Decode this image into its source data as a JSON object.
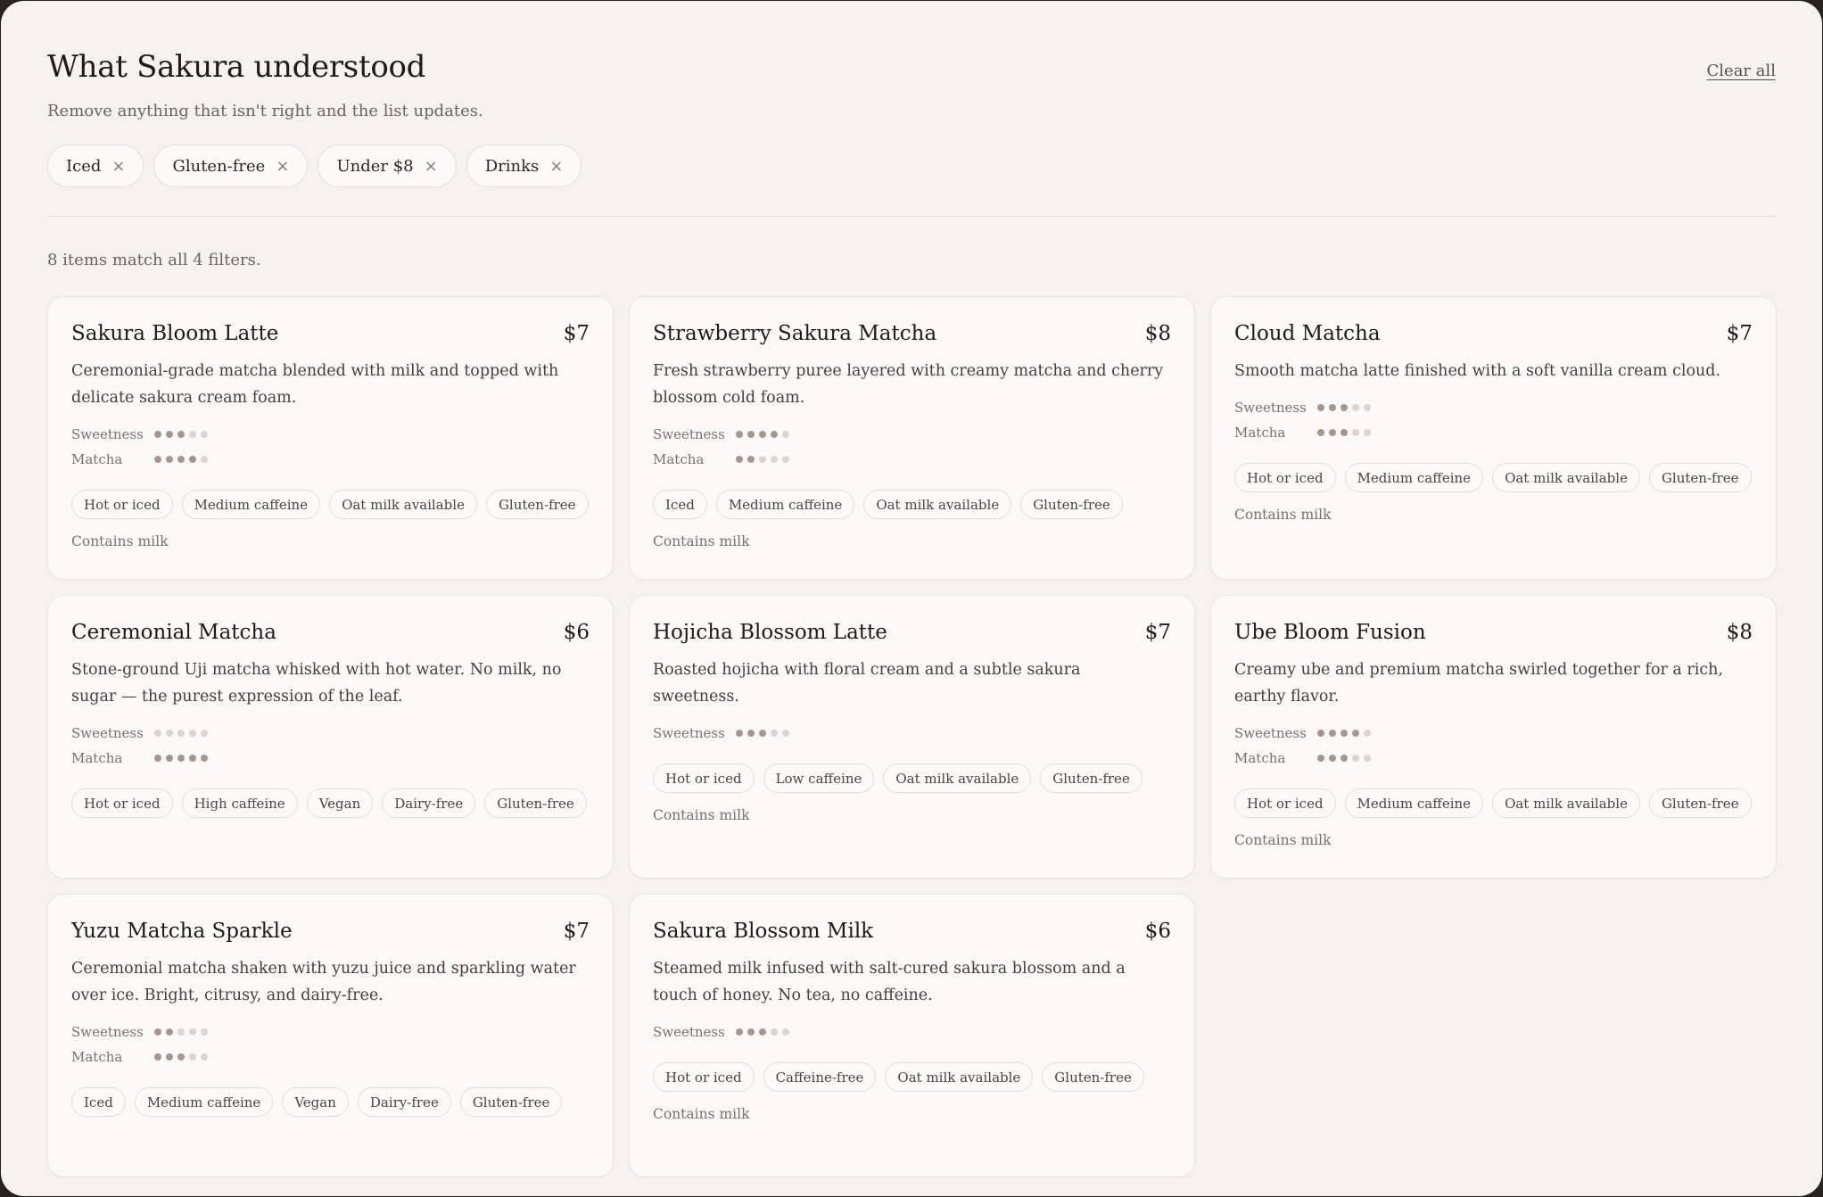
{
  "header": {
    "title": "What Sakura understood",
    "subtitle": "Remove anything that isn't right and the list updates.",
    "clear_all": "Clear all"
  },
  "filters": [
    {
      "label": "Iced",
      "remove_icon": "×"
    },
    {
      "label": "Gluten-free",
      "remove_icon": "×"
    },
    {
      "label": "Under $8",
      "remove_icon": "×"
    },
    {
      "label": "Drinks",
      "remove_icon": "×"
    }
  ],
  "match_count": "8 items match all 4 filters.",
  "meter_labels": {
    "sweetness": "Sweetness",
    "matcha": "Matcha"
  },
  "colors": {
    "dot_on": "#a89590",
    "dot_off": "#ddd3cf",
    "background": "#f6f2ef",
    "card": "#fcfaf9"
  },
  "items": [
    {
      "name": "Sakura Bloom Latte",
      "price": "$7",
      "description": "Ceremonial-grade matcha blended with milk and topped with delicate sakura cream foam.",
      "sweetness": 3,
      "matcha": 4,
      "tags": [
        "Hot or iced",
        "Medium caffeine",
        "Oat milk available",
        "Gluten-free"
      ],
      "note": "Contains milk"
    },
    {
      "name": "Strawberry Sakura Matcha",
      "price": "$8",
      "description": "Fresh strawberry puree layered with creamy matcha and cherry blossom cold foam.",
      "sweetness": 4,
      "matcha": 2,
      "tags": [
        "Iced",
        "Medium caffeine",
        "Oat milk available",
        "Gluten-free"
      ],
      "note": "Contains milk"
    },
    {
      "name": "Cloud Matcha",
      "price": "$7",
      "description": "Smooth matcha latte finished with a soft vanilla cream cloud.",
      "sweetness": 3,
      "matcha": 3,
      "tags": [
        "Hot or iced",
        "Medium caffeine",
        "Oat milk available",
        "Gluten-free"
      ],
      "note": "Contains milk"
    },
    {
      "name": "Ceremonial Matcha",
      "price": "$6",
      "description": "Stone-ground Uji matcha whisked with hot water. No milk, no sugar — the purest expression of the leaf.",
      "sweetness": 0,
      "matcha": 5,
      "tags": [
        "Hot or iced",
        "High caffeine",
        "Vegan",
        "Dairy-free",
        "Gluten-free"
      ],
      "note": ""
    },
    {
      "name": "Hojicha Blossom Latte",
      "price": "$7",
      "description": "Roasted hojicha with floral cream and a subtle sakura sweetness.",
      "sweetness": 3,
      "matcha": null,
      "tags": [
        "Hot or iced",
        "Low caffeine",
        "Oat milk available",
        "Gluten-free"
      ],
      "note": "Contains milk"
    },
    {
      "name": "Ube Bloom Fusion",
      "price": "$8",
      "description": "Creamy ube and premium matcha swirled together for a rich, earthy flavor.",
      "sweetness": 4,
      "matcha": 3,
      "tags": [
        "Hot or iced",
        "Medium caffeine",
        "Oat milk available",
        "Gluten-free"
      ],
      "note": "Contains milk"
    },
    {
      "name": "Yuzu Matcha Sparkle",
      "price": "$7",
      "description": "Ceremonial matcha shaken with yuzu juice and sparkling water over ice. Bright, citrusy, and dairy-free.",
      "sweetness": 2,
      "matcha": 3,
      "tags": [
        "Iced",
        "Medium caffeine",
        "Vegan",
        "Dairy-free",
        "Gluten-free"
      ],
      "note": ""
    },
    {
      "name": "Sakura Blossom Milk",
      "price": "$6",
      "description": "Steamed milk infused with salt-cured sakura blossom and a touch of honey. No tea, no caffeine.",
      "sweetness": 3,
      "matcha": null,
      "tags": [
        "Hot or iced",
        "Caffeine-free",
        "Oat milk available",
        "Gluten-free"
      ],
      "note": "Contains milk"
    }
  ]
}
